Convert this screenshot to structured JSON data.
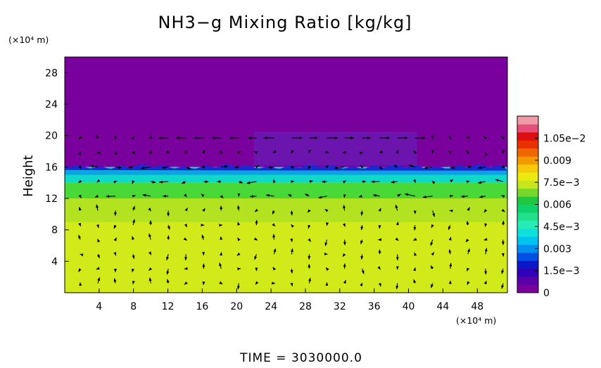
{
  "chart_data": {
    "type": "heatmap",
    "title": "NH3−g Mixing Ratio [kg/kg]",
    "ylabel": "Height",
    "x_unit": "(×10⁴ m)",
    "y_unit": "(×10⁴ m)",
    "xlim": [
      0,
      51.5
    ],
    "ylim": [
      0,
      30
    ],
    "x_ticks": [
      4,
      8,
      12,
      16,
      20,
      24,
      28,
      32,
      36,
      40,
      44,
      48
    ],
    "y_ticks": [
      4,
      8,
      12,
      16,
      20,
      24,
      28
    ],
    "colorbar": {
      "labels": [
        "0",
        "1.5e−3",
        "0.003",
        "4.5e−3",
        "0.006",
        "7.5e−3",
        "0.009",
        "1.05e−2"
      ],
      "levels": [
        0,
        0.0015,
        0.003,
        0.0045,
        0.006,
        0.0075,
        0.009,
        0.0105
      ],
      "max": 0.012,
      "colors": [
        "#7a009e",
        "#5a00a8",
        "#3200b8",
        "#0c18c8",
        "#0050e6",
        "#0090f0",
        "#00c4f0",
        "#10e0dc",
        "#28ecb6",
        "#20e08a",
        "#10d26a",
        "#20c840",
        "#78d82a",
        "#c8e61c",
        "#eaea10",
        "#f6ca0a",
        "#f49a00",
        "#f06600",
        "#e83000",
        "#dc0e10",
        "#e4507a",
        "#f09aa8"
      ]
    },
    "fields": [
      {
        "name": "lower layer",
        "value": 0.0077,
        "color": "#d2ea1a",
        "y_range": [
          0,
          9
        ]
      },
      {
        "name": "transition band",
        "value": 0.0072,
        "color": "#b2e220",
        "y_range": [
          9,
          12
        ]
      },
      {
        "name": "green layer",
        "value": 0.0062,
        "color": "#48d838",
        "y_range": [
          12,
          14
        ]
      },
      {
        "name": "cyan layer",
        "value": 0.0045,
        "color": "#10d8c8",
        "y_range": [
          14,
          16
        ]
      },
      {
        "name": "upper region",
        "value": 0,
        "color": "#7a009e",
        "y_range": [
          16,
          30
        ]
      }
    ],
    "wind_vectors": "velocity arrows over the field (unlabeled)",
    "footer": "TIME  =  3030000.0"
  }
}
